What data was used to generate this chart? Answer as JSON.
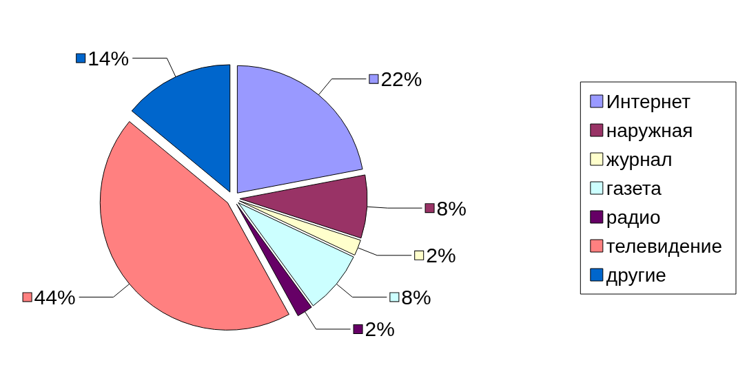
{
  "chart_data": {
    "type": "pie",
    "categories": [
      "Интернет",
      "наружная",
      "журнал",
      "газета",
      "радио",
      "телевидение",
      "другие"
    ],
    "values": [
      22,
      8,
      2,
      8,
      2,
      44,
      14
    ],
    "colors": [
      "#9999ff",
      "#993366",
      "#ffffcc",
      "#ccffff",
      "#660066",
      "#ff8080",
      "#0066cc"
    ],
    "value_labels": [
      "22%",
      "8%",
      "2%",
      "8%",
      "2%",
      "44%",
      "14%"
    ],
    "legend": "right"
  }
}
